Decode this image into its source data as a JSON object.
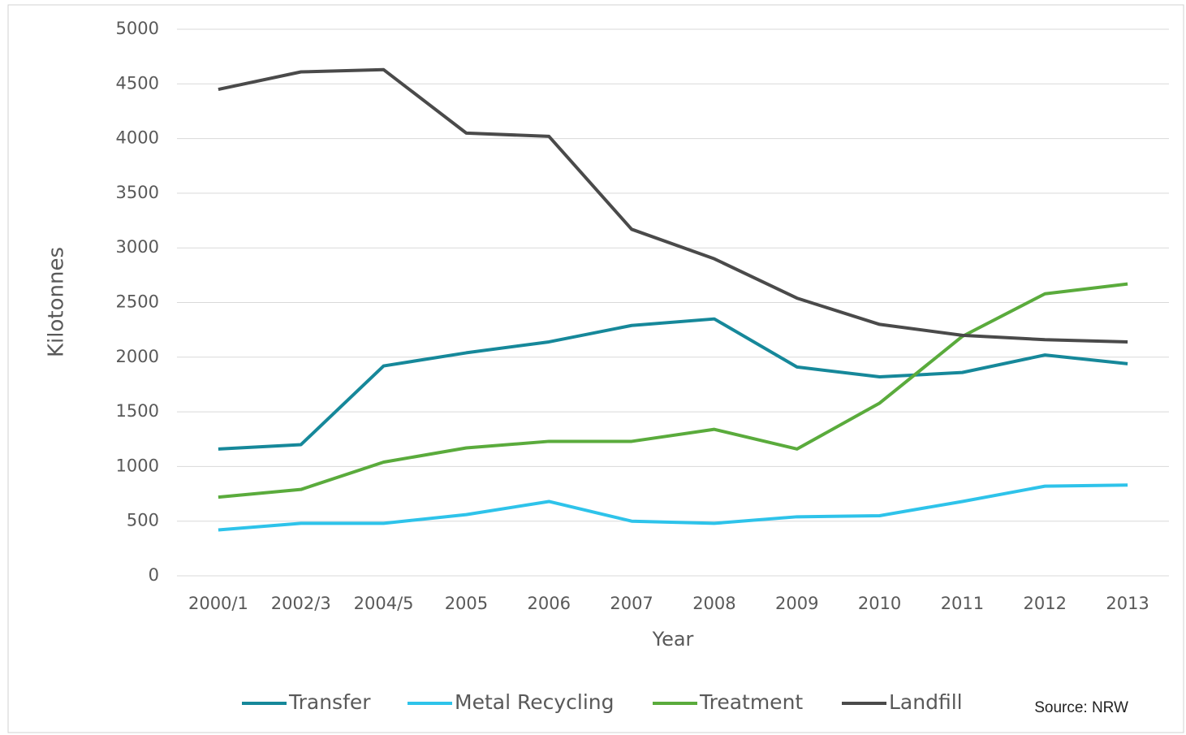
{
  "chart_data": {
    "type": "line",
    "x_label": "Year",
    "y_label": "Kilotonnes",
    "source": "Source: NRW",
    "categories": [
      "2000/1",
      "2002/3",
      "2004/5",
      "2005",
      "2006",
      "2007",
      "2008",
      "2009",
      "2010",
      "2011",
      "2012",
      "2013"
    ],
    "series": [
      {
        "name": "Transfer",
        "color": "#16889a",
        "values": [
          1160,
          1200,
          1920,
          2040,
          2140,
          2290,
          2350,
          1910,
          1820,
          1860,
          2020,
          1940
        ]
      },
      {
        "name": "Metal Recycling",
        "color": "#2ec3ea",
        "values": [
          420,
          480,
          480,
          560,
          680,
          500,
          480,
          540,
          550,
          680,
          820,
          830
        ]
      },
      {
        "name": "Treatment",
        "color": "#5aab3c",
        "values": [
          720,
          790,
          1040,
          1170,
          1230,
          1230,
          1340,
          1160,
          1580,
          2190,
          2580,
          2670
        ]
      },
      {
        "name": "Landfill",
        "color": "#4a4a4a",
        "values": [
          4450,
          4610,
          4630,
          4050,
          4020,
          3170,
          2900,
          2540,
          2300,
          2200,
          2160,
          2140
        ]
      }
    ],
    "ylim": [
      0,
      5000
    ],
    "yticks": [
      0,
      500,
      1000,
      1500,
      2000,
      2500,
      3000,
      3500,
      4000,
      4500,
      5000
    ],
    "grid": true
  }
}
